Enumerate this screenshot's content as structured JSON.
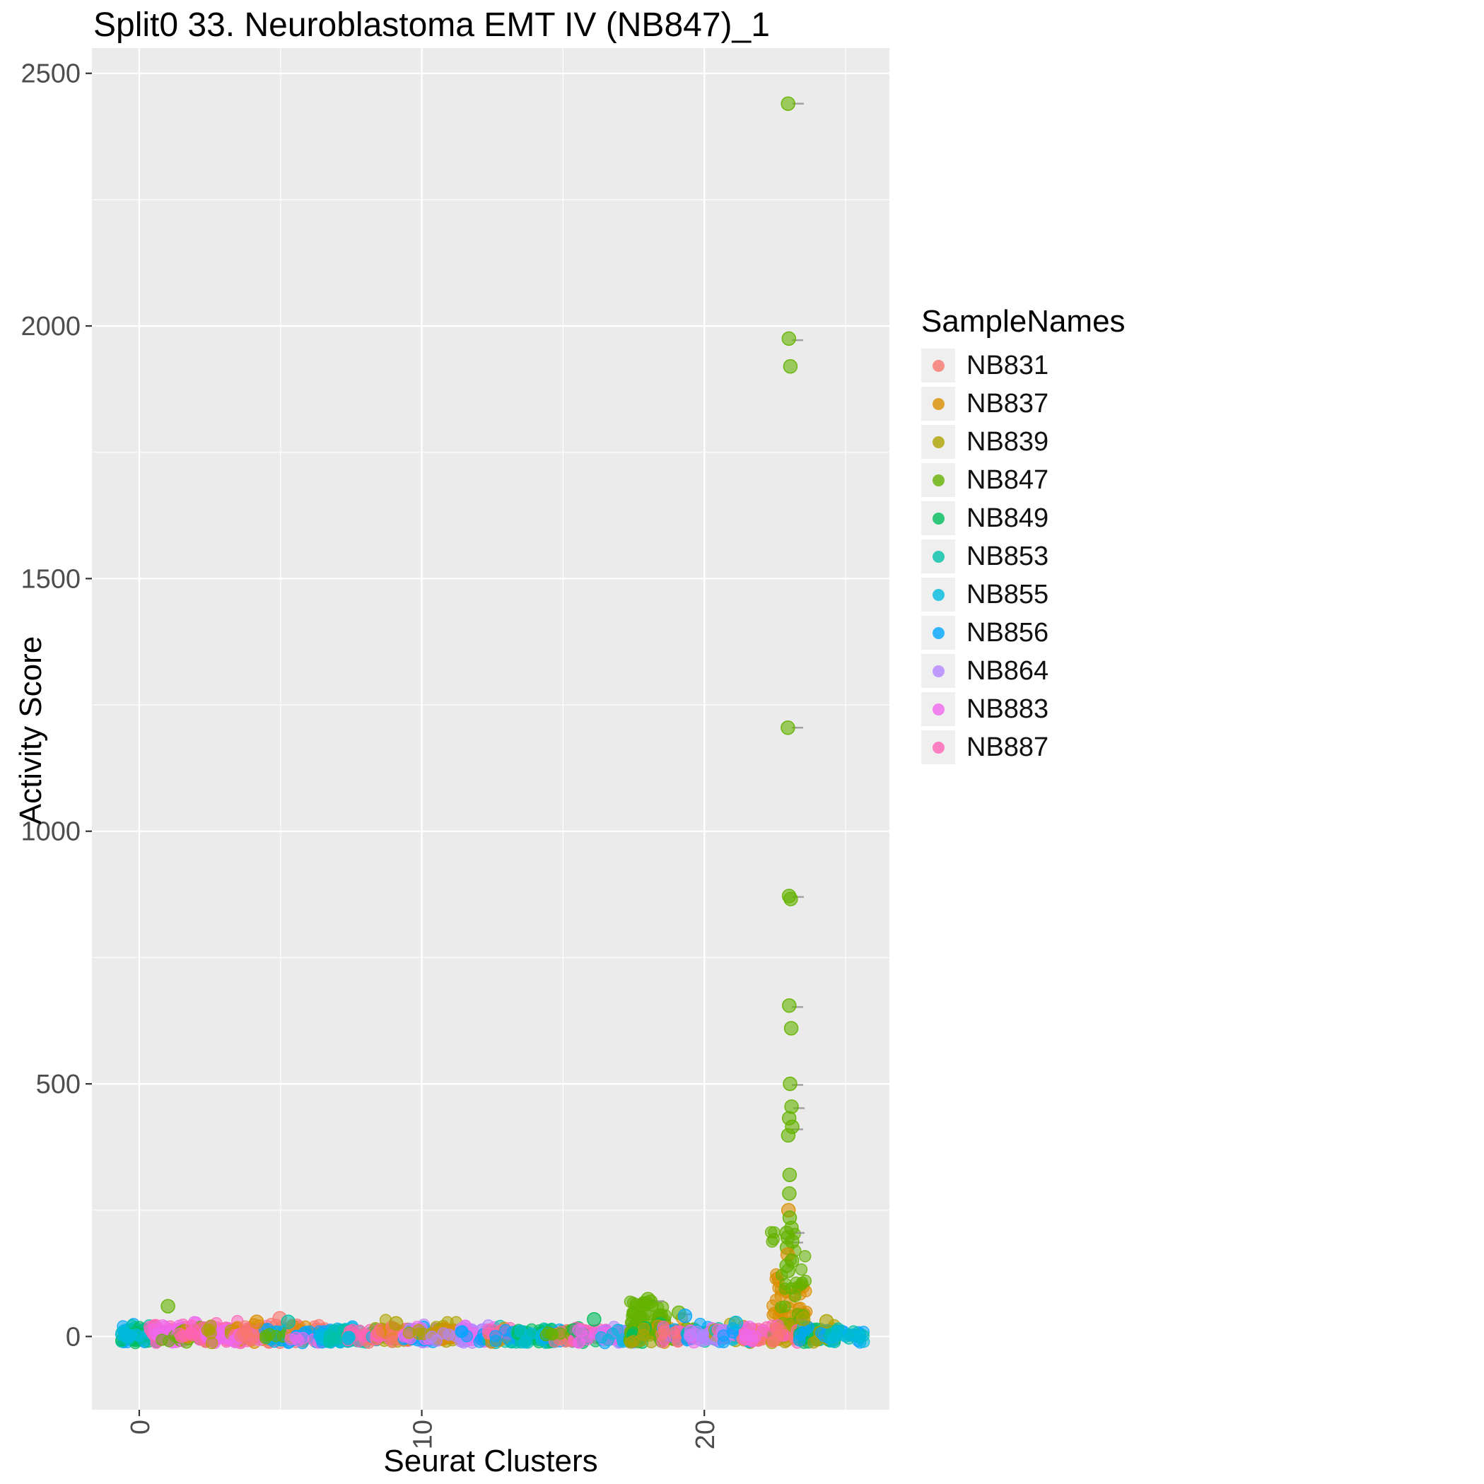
{
  "title": "Split0 33. Neuroblastoma EMT IV (NB847)_1",
  "legend": {
    "title": "SampleNames",
    "items": [
      {
        "name": "NB831",
        "color": "#F8766D"
      },
      {
        "name": "NB837",
        "color": "#DB8E00"
      },
      {
        "name": "NB839",
        "color": "#AEA200"
      },
      {
        "name": "NB847",
        "color": "#64B200"
      },
      {
        "name": "NB849",
        "color": "#00BD5C"
      },
      {
        "name": "NB853",
        "color": "#00C1A7"
      },
      {
        "name": "NB855",
        "color": "#00BADE"
      },
      {
        "name": "NB856",
        "color": "#00A6FF"
      },
      {
        "name": "NB864",
        "color": "#B385FF"
      },
      {
        "name": "NB883",
        "color": "#EF67EB"
      },
      {
        "name": "NB887",
        "color": "#FF63B6"
      }
    ]
  },
  "chart_data": {
    "type": "scatter",
    "title": "Split0 33. Neuroblastoma EMT IV (NB847)_1",
    "xlabel": "Seurat Clusters",
    "ylabel": "Activity Score",
    "legend_title": "SampleNames",
    "legend_position": "right",
    "panel_bg": "#EBEBEB",
    "grid_color": "#FFFFFF",
    "x_ticks": [
      0,
      10,
      20
    ],
    "x_minor_ticks": [
      5,
      15,
      25
    ],
    "y_ticks": [
      0,
      500,
      1000,
      1500,
      2000,
      2500
    ],
    "y_minor_ticks": [
      250,
      750,
      1250,
      1750,
      2250
    ],
    "xlim": [
      -1.675,
      26.55
    ],
    "ylim": [
      -145,
      2550
    ],
    "clusters": [
      {
        "x": 0,
        "groups": [
          [
            "NB856",
            40,
            14
          ],
          [
            "NB853",
            25,
            12
          ],
          [
            "NB849",
            15,
            10
          ],
          [
            "NB855",
            15,
            12
          ]
        ]
      },
      {
        "x": 1,
        "groups": [
          [
            "NB887",
            45,
            22
          ],
          [
            "NB883",
            20,
            15
          ],
          [
            "NB847",
            6,
            18
          ]
        ]
      },
      {
        "x": 2,
        "groups": [
          [
            "NB883",
            40,
            20
          ],
          [
            "NB847",
            12,
            18
          ],
          [
            "NB837",
            10,
            14
          ],
          [
            "NB887",
            15,
            12
          ]
        ]
      },
      {
        "x": 3,
        "groups": [
          [
            "NB887",
            40,
            25
          ],
          [
            "NB883",
            25,
            20
          ],
          [
            "NB839",
            10,
            14
          ]
        ]
      },
      {
        "x": 4,
        "groups": [
          [
            "NB837",
            30,
            22
          ],
          [
            "NB887",
            20,
            15
          ],
          [
            "NB883",
            15,
            12
          ],
          [
            "NB831",
            10,
            14
          ]
        ]
      },
      {
        "x": 5,
        "groups": [
          [
            "NB831",
            20,
            25
          ],
          [
            "NB853",
            15,
            18
          ],
          [
            "NB856",
            15,
            12
          ],
          [
            "NB847",
            8,
            10
          ]
        ]
      },
      {
        "x": 6,
        "groups": [
          [
            "NB831",
            30,
            25
          ],
          [
            "NB837",
            15,
            15
          ],
          [
            "NB856",
            12,
            10
          ],
          [
            "NB883",
            8,
            8
          ]
        ]
      },
      {
        "x": 7,
        "groups": [
          [
            "NB856",
            35,
            14
          ],
          [
            "NB855",
            25,
            12
          ],
          [
            "NB853",
            10,
            10
          ]
        ]
      },
      {
        "x": 8,
        "groups": [
          [
            "NB853",
            25,
            15
          ],
          [
            "NB831",
            15,
            12
          ],
          [
            "NB887",
            15,
            10
          ],
          [
            "NB855",
            8,
            8
          ]
        ]
      },
      {
        "x": 9,
        "groups": [
          [
            "NB839",
            35,
            22
          ],
          [
            "NB887",
            20,
            14
          ],
          [
            "NB837",
            12,
            12
          ],
          [
            "NB831",
            6,
            8
          ]
        ]
      },
      {
        "x": 10,
        "groups": [
          [
            "NB864",
            35,
            18
          ],
          [
            "NB856",
            15,
            10
          ],
          [
            "NB883",
            12,
            10
          ],
          [
            "NB839",
            8,
            8
          ]
        ]
      },
      {
        "x": 11,
        "groups": [
          [
            "NB839",
            40,
            25
          ],
          [
            "NB837",
            15,
            15
          ],
          [
            "NB864",
            8,
            8
          ]
        ]
      },
      {
        "x": 12,
        "groups": [
          [
            "NB864",
            40,
            18
          ],
          [
            "NB883",
            10,
            10
          ],
          [
            "NB856",
            8,
            8
          ]
        ]
      },
      {
        "x": 13,
        "groups": [
          [
            "NB853",
            20,
            12
          ],
          [
            "NB837",
            12,
            10
          ],
          [
            "NB887",
            12,
            8
          ],
          [
            "NB856",
            8,
            8
          ]
        ]
      },
      {
        "x": 14,
        "groups": [
          [
            "NB853",
            40,
            15
          ],
          [
            "NB849",
            10,
            10
          ],
          [
            "NB855",
            8,
            8
          ]
        ]
      },
      {
        "x": 15,
        "groups": [
          [
            "NB849",
            20,
            20
          ],
          [
            "NB856",
            15,
            12
          ],
          [
            "NB831",
            10,
            10
          ],
          [
            "NB847",
            8,
            12
          ]
        ]
      },
      {
        "x": 16,
        "groups": [
          [
            "NB887",
            35,
            18
          ],
          [
            "NB849",
            10,
            12
          ],
          [
            "NB883",
            10,
            10
          ]
        ]
      },
      {
        "x": 17,
        "groups": [
          [
            "NB856",
            20,
            14
          ],
          [
            "NB864",
            15,
            10
          ],
          [
            "NB883",
            12,
            10
          ],
          [
            "NB855",
            8,
            8
          ]
        ]
      },
      {
        "x": 18,
        "groups": [
          [
            "NB847",
            85,
            62,
            1.3
          ],
          [
            "NB849",
            10,
            15
          ],
          [
            "NB839",
            8,
            10
          ]
        ]
      },
      {
        "x": 19,
        "groups": [
          [
            "NB837",
            20,
            30
          ],
          [
            "NB847",
            15,
            25
          ],
          [
            "NB856",
            12,
            15
          ],
          [
            "NB887",
            10,
            10
          ],
          [
            "NB831",
            8,
            12
          ]
        ]
      },
      {
        "x": 20,
        "groups": [
          [
            "NB856",
            25,
            14
          ],
          [
            "NB853",
            15,
            10
          ],
          [
            "NB883",
            12,
            10
          ],
          [
            "NB864",
            10,
            8
          ]
        ]
      },
      {
        "x": 21,
        "groups": [
          [
            "NB839",
            15,
            15
          ],
          [
            "NB855",
            12,
            12
          ],
          [
            "NB887",
            12,
            10
          ],
          [
            "NB864",
            10,
            8
          ],
          [
            "NB856",
            8,
            8
          ]
        ]
      },
      {
        "x": 22,
        "groups": [
          [
            "NB887",
            35,
            15
          ],
          [
            "NB831",
            12,
            10
          ],
          [
            "NB883",
            8,
            8
          ]
        ]
      },
      {
        "x": 23,
        "groups": [
          [
            "NB837",
            70,
            130,
            2.2
          ],
          [
            "NB847",
            35,
            210,
            1.8
          ],
          [
            "NB839",
            12,
            35
          ],
          [
            "NB887",
            15,
            12
          ],
          [
            "NB831",
            8,
            10
          ]
        ]
      },
      {
        "x": 24,
        "groups": [
          [
            "NB853",
            20,
            12
          ],
          [
            "NB849",
            12,
            10
          ],
          [
            "NB839",
            8,
            28
          ],
          [
            "NB856",
            8,
            8
          ]
        ]
      },
      {
        "x": 25,
        "groups": [
          [
            "NB856",
            15,
            10
          ],
          [
            "NB853",
            10,
            8
          ],
          [
            "NB855",
            8,
            8
          ]
        ]
      }
    ],
    "outliers": [
      {
        "x": 1.0,
        "y": 60,
        "s": "NB847"
      },
      {
        "x": 16.1,
        "y": 34,
        "s": "NB849"
      },
      {
        "x": 18.0,
        "y": 74,
        "s": "NB847"
      },
      {
        "x": 18.15,
        "y": 69,
        "s": "NB847"
      },
      {
        "x": 17.9,
        "y": 64,
        "s": "NB847"
      },
      {
        "x": 19.1,
        "y": 47,
        "s": "NB847"
      },
      {
        "x": 19.3,
        "y": 41,
        "s": "NB856"
      },
      {
        "x": 21.1,
        "y": 27,
        "s": "NB855"
      },
      {
        "x": 5.0,
        "y": 36,
        "s": "NB831"
      },
      {
        "x": 5.25,
        "y": 29,
        "s": "NB853"
      },
      {
        "x": 4.1,
        "y": 29,
        "s": "NB837"
      },
      {
        "x": 9.05,
        "y": 26,
        "s": "NB839"
      },
      {
        "x": 23.0,
        "y": 2440,
        "s": "NB847"
      },
      {
        "x": 22.95,
        "y": 1975,
        "s": "NB847"
      },
      {
        "x": 23.0,
        "y": 1920,
        "s": "NB847"
      },
      {
        "x": 22.95,
        "y": 1205,
        "s": "NB847"
      },
      {
        "x": 23.0,
        "y": 872,
        "s": "NB847"
      },
      {
        "x": 23.08,
        "y": 866,
        "s": "NB847"
      },
      {
        "x": 22.98,
        "y": 655,
        "s": "NB847"
      },
      {
        "x": 23.02,
        "y": 610,
        "s": "NB847"
      },
      {
        "x": 23.0,
        "y": 500,
        "s": "NB847"
      },
      {
        "x": 23.1,
        "y": 455,
        "s": "NB847"
      },
      {
        "x": 22.97,
        "y": 432,
        "s": "NB847"
      },
      {
        "x": 23.12,
        "y": 415,
        "s": "NB847"
      },
      {
        "x": 23.0,
        "y": 398,
        "s": "NB847"
      },
      {
        "x": 23.02,
        "y": 320,
        "s": "NB847"
      },
      {
        "x": 23.0,
        "y": 283,
        "s": "NB847"
      },
      {
        "x": 22.95,
        "y": 250,
        "s": "NB837"
      },
      {
        "x": 23.0,
        "y": 235,
        "s": "NB847"
      },
      {
        "x": 23.1,
        "y": 215,
        "s": "NB847"
      },
      {
        "x": 22.92,
        "y": 205,
        "s": "NB847"
      },
      {
        "x": 23.0,
        "y": 196,
        "s": "NB847"
      },
      {
        "x": 23.06,
        "y": 188,
        "s": "NB847"
      },
      {
        "x": 22.98,
        "y": 176,
        "s": "NB847"
      },
      {
        "x": 23.0,
        "y": 162,
        "s": "NB837"
      },
      {
        "x": 23.1,
        "y": 150,
        "s": "NB847"
      },
      {
        "x": 22.95,
        "y": 140,
        "s": "NB847"
      },
      {
        "x": 23.0,
        "y": 130,
        "s": "NB847"
      },
      {
        "x": 23.5,
        "y": 35,
        "s": "NB839"
      },
      {
        "x": 24.35,
        "y": 30,
        "s": "NB839"
      }
    ],
    "whisker_marks": [
      {
        "x": 23.32,
        "y": 2440
      },
      {
        "x": 23.3,
        "y": 1972
      },
      {
        "x": 23.3,
        "y": 1205
      },
      {
        "x": 23.32,
        "y": 870
      },
      {
        "x": 23.3,
        "y": 652
      },
      {
        "x": 23.3,
        "y": 498
      },
      {
        "x": 23.35,
        "y": 452
      },
      {
        "x": 23.3,
        "y": 410
      },
      {
        "x": 23.35,
        "y": 205
      },
      {
        "x": 23.3,
        "y": 186
      },
      {
        "x": 23.42,
        "y": 33
      },
      {
        "x": 18.38,
        "y": 70
      },
      {
        "x": 19.32,
        "y": 44
      }
    ]
  }
}
